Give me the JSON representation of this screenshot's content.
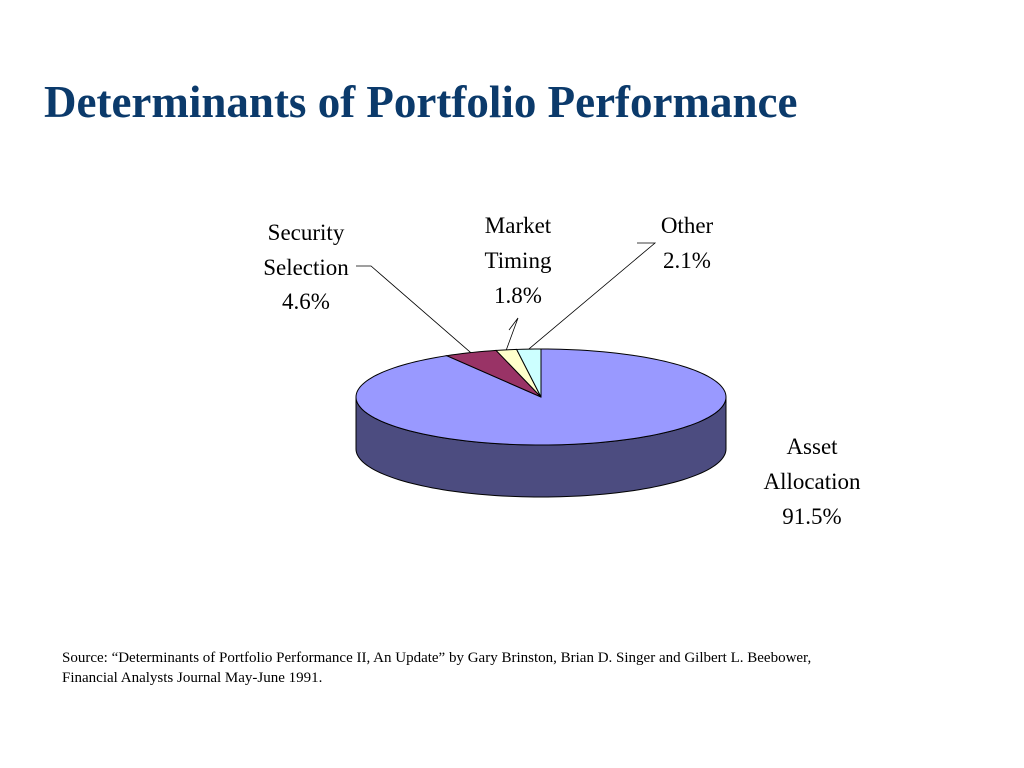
{
  "slide": {
    "title": "Determinants of Portfolio Performance",
    "source_line1": "Source: “Determinants of Portfolio Performance II, An Update” by Gary Brinston, Brian D. Singer and Gilbert L. Beebower,",
    "source_line2": "Financial Analysts Journal May-June 1991."
  },
  "chart_data": {
    "type": "pie",
    "title": "",
    "slices": [
      {
        "name_lines": [
          "Asset",
          "Allocation"
        ],
        "value": 91.5,
        "label": "91.5%",
        "color": "#9999ff",
        "side_color": "#4c4c80"
      },
      {
        "name_lines": [
          "Security",
          "Selection"
        ],
        "value": 4.6,
        "label": "4.6%",
        "color": "#993366",
        "side_color": "#4d1a33"
      },
      {
        "name_lines": [
          "Market",
          "Timing"
        ],
        "value": 1.8,
        "label": "1.8%",
        "color": "#ffffcc",
        "side_color": "#808066"
      },
      {
        "name_lines": [
          "Other"
        ],
        "value": 2.1,
        "label": "2.1%",
        "color": "#ccffff",
        "side_color": "#668080"
      }
    ],
    "style": "3d-pie",
    "legend": "none",
    "data_labels": "outside-with-leader-lines"
  }
}
